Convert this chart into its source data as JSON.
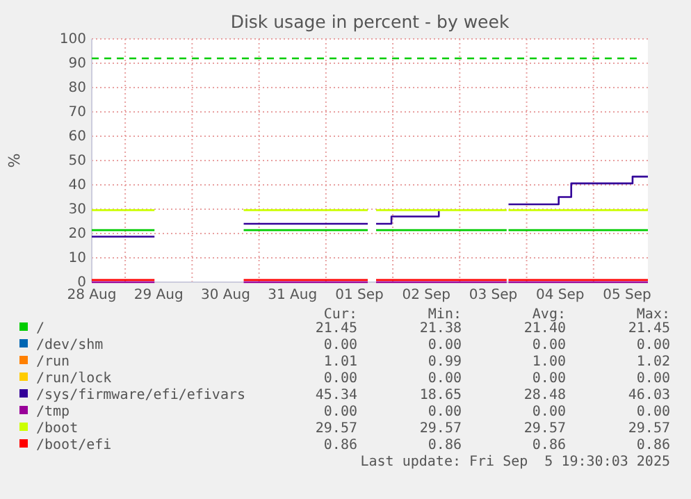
{
  "chart_data": {
    "type": "step",
    "title": "Disk usage in percent - by week",
    "ylabel": "%",
    "xlim": [
      "2025-08-28T12:00",
      "2025-09-05T19:30"
    ],
    "xticks": [
      {
        "value": "2025-08-28T12:00",
        "label": "28 Aug"
      },
      {
        "value": "2025-08-29T00:00",
        "label": null
      },
      {
        "value": "2025-08-29T12:00",
        "label": "29 Aug"
      },
      {
        "value": "2025-08-30T00:00",
        "label": null
      },
      {
        "value": "2025-08-30T12:00",
        "label": "30 Aug"
      },
      {
        "value": "2025-08-31T00:00",
        "label": null
      },
      {
        "value": "2025-08-31T12:00",
        "label": "31 Aug"
      },
      {
        "value": "2025-09-01T00:00",
        "label": null
      },
      {
        "value": "2025-09-01T12:00",
        "label": "01 Sep"
      },
      {
        "value": "2025-09-02T00:00",
        "label": null
      },
      {
        "value": "2025-09-02T12:00",
        "label": "02 Sep"
      },
      {
        "value": "2025-09-03T00:00",
        "label": null
      },
      {
        "value": "2025-09-03T12:00",
        "label": "03 Sep"
      },
      {
        "value": "2025-09-04T00:00",
        "label": null
      },
      {
        "value": "2025-09-04T12:00",
        "label": "04 Sep"
      },
      {
        "value": "2025-09-05T00:00",
        "label": null
      },
      {
        "value": "2025-09-05T12:00",
        "label": "05 Sep"
      }
    ],
    "ylim": [
      0,
      100
    ],
    "yticks": [
      0,
      10,
      20,
      30,
      40,
      50,
      60,
      70,
      80,
      90,
      100
    ],
    "grid": true,
    "legend": "bottom",
    "line_style": "solid",
    "ref_lines": [
      {
        "axis": "y",
        "value": 92,
        "color": "#00cc00",
        "line_style": "dashed"
      }
    ],
    "series": [
      {
        "name": "/",
        "color": "#00cc00",
        "x": [
          "2025-08-28T12:00",
          "2025-08-29T10:30",
          "2025-08-29T11:00",
          "2025-08-30T18:30",
          "2025-09-01T15:00",
          "2025-09-01T15:30",
          "2025-09-01T18:00",
          "2025-09-03T16:50",
          "2025-09-03T17:00",
          "2025-09-03T17:30",
          "2025-09-04T17:30",
          "2025-09-05T19:30"
        ],
        "values": [
          21.4,
          21.4,
          null,
          21.4,
          21.4,
          null,
          21.4,
          21.4,
          null,
          21.4,
          21.4,
          21.4
        ]
      },
      {
        "name": "/dev/shm",
        "color": "#0066b3",
        "values": [
          null
        ]
      },
      {
        "name": "/run",
        "color": "#ff8000",
        "values": [
          null
        ]
      },
      {
        "name": "/run/lock",
        "color": "#ffcc00",
        "values": [
          null
        ]
      },
      {
        "name": "/sys/firmware/efi/efivars",
        "color": "#330099",
        "x": [
          "2025-08-28T12:00",
          "2025-08-29T10:30",
          "2025-08-29T11:00",
          "2025-08-30T18:30",
          "2025-09-01T15:00",
          "2025-09-01T15:30",
          "2025-09-01T18:00",
          "2025-09-01T23:30",
          "2025-09-02T16:30",
          "2025-09-02T17:00",
          "2025-09-03T17:30",
          "2025-09-04T11:30",
          "2025-09-04T16:00",
          "2025-09-05T14:00",
          "2025-09-05T19:30"
        ],
        "values": [
          18.7,
          18.7,
          null,
          24,
          24,
          null,
          24,
          27,
          29.5,
          null,
          32,
          35,
          40.6,
          43.4,
          43.4
        ]
      },
      {
        "name": "/tmp",
        "color": "#990099",
        "x": [
          "2025-08-28T12:00",
          "2025-08-29T10:30",
          "2025-08-29T11:00",
          "2025-08-30T18:30",
          "2025-09-01T15:00",
          "2025-09-01T15:30",
          "2025-09-01T18:00",
          "2025-09-03T16:50",
          "2025-09-03T17:00",
          "2025-09-03T17:30",
          "2025-09-05T19:30"
        ],
        "values": [
          0,
          0,
          null,
          0,
          0,
          null,
          0,
          0,
          null,
          0,
          0
        ]
      },
      {
        "name": "/boot",
        "color": "#ccff00",
        "x": [
          "2025-08-28T12:00",
          "2025-08-29T10:30",
          "2025-08-29T11:00",
          "2025-08-30T18:30",
          "2025-09-01T15:00",
          "2025-09-01T15:30",
          "2025-09-01T18:00",
          "2025-09-03T16:50",
          "2025-09-03T17:00",
          "2025-09-03T17:30",
          "2025-09-05T19:30"
        ],
        "values": [
          29.6,
          29.6,
          null,
          29.6,
          29.6,
          null,
          29.6,
          29.6,
          null,
          29.6,
          29.6
        ]
      },
      {
        "name": "/boot/efi",
        "color": "#ff0000",
        "x": [
          "2025-08-28T12:00",
          "2025-08-29T10:30",
          "2025-08-29T11:00",
          "2025-08-30T18:30",
          "2025-09-01T15:00",
          "2025-09-01T15:30",
          "2025-09-01T18:00",
          "2025-09-03T16:50",
          "2025-09-03T17:00",
          "2025-09-03T17:30",
          "2025-09-05T19:30"
        ],
        "values": [
          0.9,
          0.9,
          null,
          0.9,
          0.9,
          null,
          0.9,
          0.9,
          null,
          0.9,
          0.9
        ]
      }
    ],
    "annotations": [
      "Cur:",
      "Min:",
      "Avg:",
      "Max:",
      "21.45",
      "21.38",
      "21.40",
      "21.45",
      "0.00",
      "0.00",
      "0.00",
      "0.00",
      "1.01",
      "0.99",
      "1.00",
      "1.02",
      "0.00",
      "0.00",
      "0.00",
      "0.00",
      "45.34",
      "18.65",
      "28.48",
      "46.03",
      "0.00",
      "0.00",
      "0.00",
      "0.00",
      "29.57",
      "29.57",
      "29.57",
      "29.57",
      "0.86",
      "0.86",
      "0.86",
      "0.86",
      "Last update: Fri Sep  5 19:30:03 2025"
    ]
  }
}
